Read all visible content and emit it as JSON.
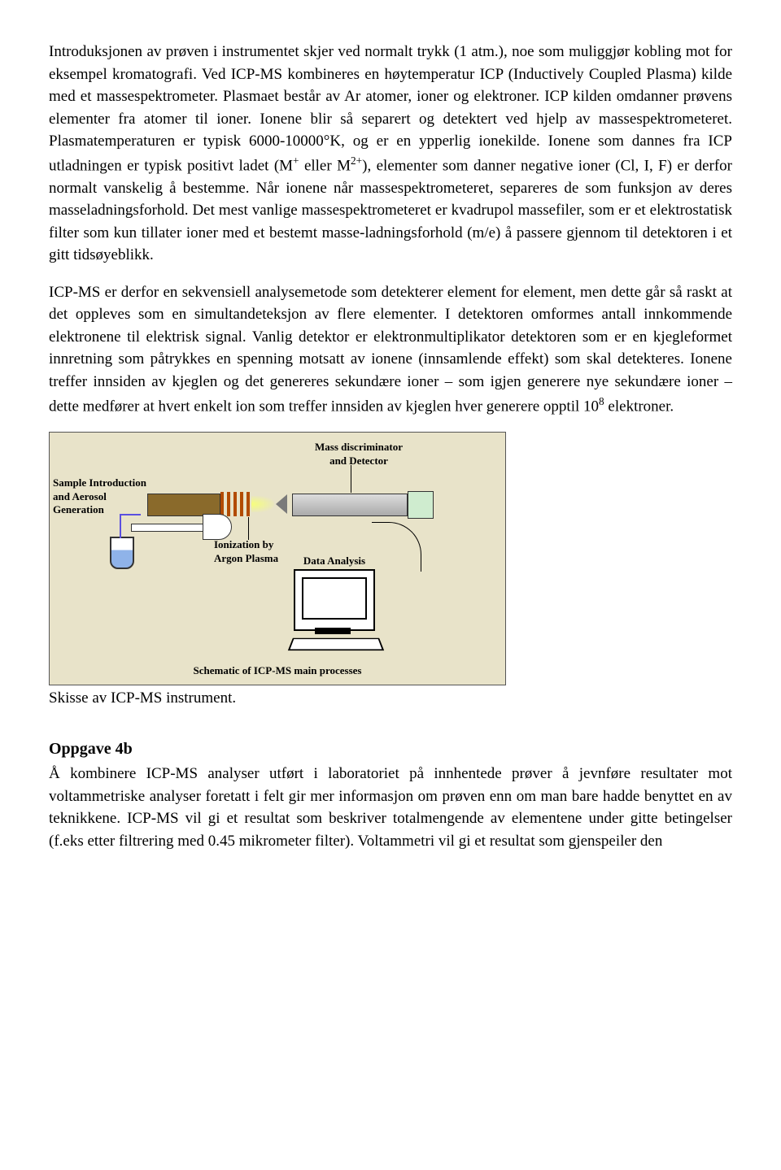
{
  "para1": "Introduksjonen av prøven i instrumentet skjer ved normalt trykk (1 atm.), noe som muliggjør kobling mot for eksempel kromatografi. Ved ICP-MS kombineres en høytemperatur ICP (Inductively Coupled Plasma) kilde med et massespektrometer. Plasmaet består av Ar atomer, ioner og elektroner. ICP kilden omdanner prøvens elementer fra atomer til ioner. Ionene blir så separert og detektert ved hjelp av massespektrometeret. Plasmatemperaturen er typisk 6000-10000°K, og er en ypperlig ionekilde. Ionene som dannes fra ICP utladningen er typisk positivt ladet (M",
  "para1_sup1": "+",
  "para1_mid": " eller M",
  "para1_sup2": "2+",
  "para1_end": "), elementer som danner negative ioner (Cl, I, F) er derfor normalt vanskelig å bestemme. Når ionene når massespektrometeret, separeres de som funksjon av deres masseladningsforhold. Det mest vanlige massespektrometeret er kvadrupol massefiler, som er et elektrostatisk filter som kun tillater ioner med et bestemt masse-ladningsforhold (m/e) å passere gjennom til detektoren i et gitt tidsøyeblikk.",
  "para2": "ICP-MS er derfor en sekvensiell analysemetode som detekterer element for element, men dette går så raskt at det oppleves som en simultandeteksjon av flere elementer. I detektoren omformes antall innkommende elektronene til elektrisk signal. Vanlig detektor er elektronmultiplikator detektoren som er en kjegleformet innretning som påtrykkes en spenning motsatt av ionene (innsamlende effekt) som skal detekteres. Ionene treffer innsiden av kjeglen og det genereres sekundære ioner – som igjen generere nye sekundære ioner – dette medfører at hvert enkelt ion som treffer innsiden av kjeglen hver generere opptil 10",
  "para2_sup": "8",
  "para2_end": " elektroner.",
  "diagram": {
    "label_ms": "Mass discriminator\nand Detector",
    "label_sample": "Sample Introduction\nand Aerosol\nGeneration",
    "label_ion": "Ionization by\nArgon Plasma",
    "label_data": "Data Analysis",
    "caption": "Schematic of ICP-MS main processes",
    "colors": {
      "bg": "#e8e3c9",
      "torch": "#8a6a2b",
      "coil": "#b24b00",
      "plasma": "#f6ff7a",
      "liquid": "#8fb3e9",
      "tube": "#5a4fe0",
      "detector": "#cfeccf"
    }
  },
  "skisse": "Skisse av ICP-MS instrument.",
  "oppgave_title": "Oppgave 4b",
  "para3": "Å kombinere ICP-MS analyser utført i laboratoriet på innhentede prøver å jevnføre resultater mot voltammetriske analyser foretatt i felt gir mer informasjon om prøven enn om man bare hadde benyttet en av teknikkene. ICP-MS vil gi et resultat som beskriver totalmengende av elementene under gitte betingelser (f.eks etter filtrering med 0.45 mikrometer filter). Voltammetri vil gi et resultat som gjenspeiler den"
}
